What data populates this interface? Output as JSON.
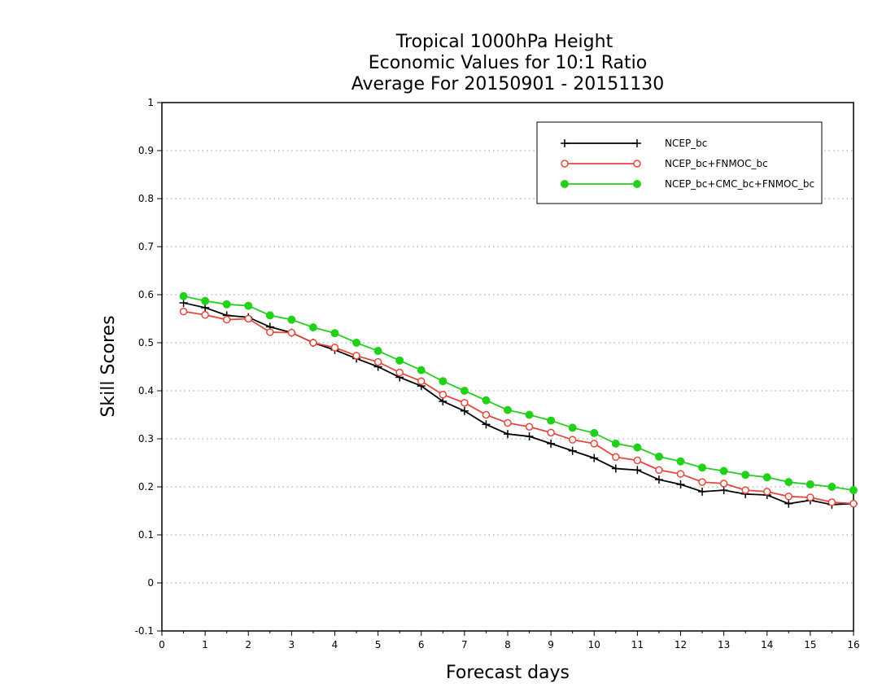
{
  "chart_data": {
    "type": "line",
    "title_lines": [
      "Tropical 1000hPa Height",
      "Economic Values for 10:1 Ratio",
      "Average For 20150901 - 20151130"
    ],
    "xlabel": "Forecast days",
    "ylabel": "Skill Scores",
    "xlim": [
      0,
      16
    ],
    "ylim": [
      -0.1,
      1
    ],
    "xticks": [
      0,
      1,
      2,
      3,
      4,
      5,
      6,
      7,
      8,
      9,
      10,
      11,
      12,
      13,
      14,
      15,
      16
    ],
    "yticks": [
      -0.1,
      0,
      0.1,
      0.2,
      0.3,
      0.4,
      0.5,
      0.6,
      0.7,
      0.8,
      0.9,
      1
    ],
    "ytick_labels": [
      "-0.1",
      "0",
      "0.1",
      "0.2",
      "0.3",
      "0.4",
      "0.5",
      "0.6",
      "0.7",
      "0.8",
      "0.9",
      "1"
    ],
    "grid": "horizontal dotted",
    "legend_position": "top-right",
    "x": [
      0.5,
      1,
      1.5,
      2,
      2.5,
      3,
      3.5,
      4,
      4.5,
      5,
      5.5,
      6,
      6.5,
      7,
      7.5,
      8,
      8.5,
      9,
      9.5,
      10,
      10.5,
      11,
      11.5,
      12,
      12.5,
      13,
      13.5,
      14,
      14.5,
      15,
      15.5,
      16
    ],
    "series": [
      {
        "name": "NCEP_bc",
        "color": "#000000",
        "marker": "plus",
        "values": [
          0.583,
          0.573,
          0.557,
          0.553,
          0.533,
          0.521,
          0.5,
          0.485,
          0.467,
          0.45,
          0.428,
          0.41,
          0.378,
          0.358,
          0.33,
          0.31,
          0.305,
          0.29,
          0.275,
          0.26,
          0.238,
          0.235,
          0.215,
          0.205,
          0.19,
          0.193,
          0.185,
          0.183,
          0.165,
          0.172,
          0.163,
          0.165
        ]
      },
      {
        "name": "NCEP_bc+FNMOC_bc",
        "color": "#e8453c",
        "marker": "open-circle",
        "values": [
          0.565,
          0.558,
          0.548,
          0.55,
          0.522,
          0.521,
          0.5,
          0.49,
          0.473,
          0.46,
          0.438,
          0.42,
          0.392,
          0.375,
          0.35,
          0.333,
          0.325,
          0.313,
          0.298,
          0.29,
          0.262,
          0.255,
          0.235,
          0.227,
          0.21,
          0.207,
          0.193,
          0.19,
          0.18,
          0.178,
          0.168,
          0.165
        ]
      },
      {
        "name": "NCEP_bc+CMC_bc+FNMOC_bc",
        "color": "#22d11b",
        "marker": "filled-circle",
        "values": [
          0.597,
          0.587,
          0.58,
          0.577,
          0.557,
          0.548,
          0.532,
          0.52,
          0.5,
          0.483,
          0.463,
          0.443,
          0.42,
          0.4,
          0.38,
          0.36,
          0.35,
          0.338,
          0.323,
          0.312,
          0.29,
          0.282,
          0.263,
          0.253,
          0.24,
          0.233,
          0.225,
          0.22,
          0.21,
          0.205,
          0.2,
          0.193
        ]
      }
    ]
  }
}
